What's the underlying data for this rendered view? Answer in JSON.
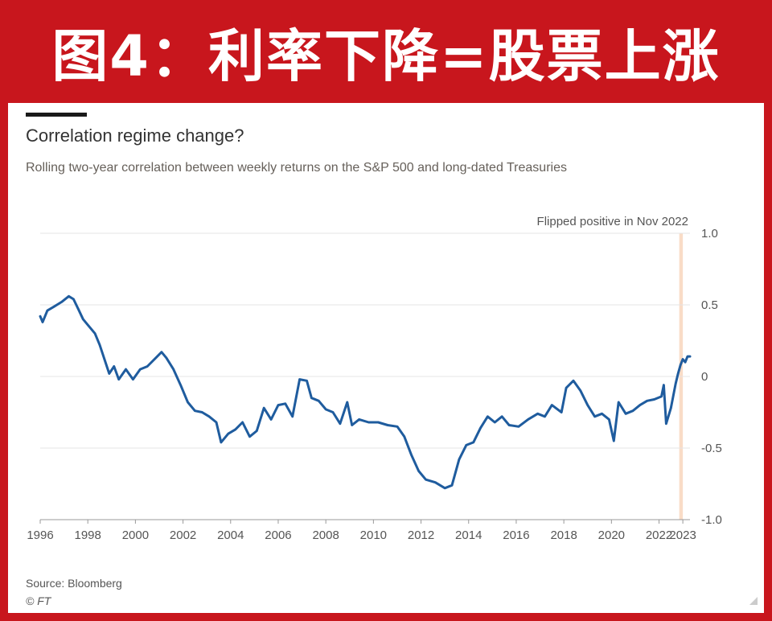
{
  "banner": {
    "title": "图4：利率下降=股票上涨"
  },
  "chart_data": {
    "type": "line",
    "title": "Correlation regime change?",
    "subtitle": "Rolling two-year correlation between weekly returns on the S&P 500 and long-dated Treasuries",
    "annotation": "Flipped positive in Nov 2022",
    "shaded_period": [
      2022.85,
      2023.0
    ],
    "x_ticks": [
      "1996",
      "1998",
      "2000",
      "2002",
      "2004",
      "2006",
      "2008",
      "2010",
      "2012",
      "2014",
      "2016",
      "2018",
      "2020",
      "2022",
      "2023"
    ],
    "y_ticks": [
      "1.0",
      "0.5",
      "0",
      "-0.5",
      "-1.0"
    ],
    "xlim": [
      1996,
      2023.3
    ],
    "ylim": [
      -1.0,
      1.0
    ],
    "y_axis_side": "right",
    "grid": true,
    "colors": {
      "line": "#1f5c9e",
      "shade": "#f9dcc7",
      "grid": "#e5e5e5"
    },
    "series": [
      {
        "points": [
          [
            1996.0,
            0.42
          ],
          [
            1996.1,
            0.38
          ],
          [
            1996.3,
            0.46
          ],
          [
            1996.6,
            0.49
          ],
          [
            1996.9,
            0.52
          ],
          [
            1997.2,
            0.56
          ],
          [
            1997.4,
            0.54
          ],
          [
            1997.6,
            0.47
          ],
          [
            1997.8,
            0.4
          ],
          [
            1998.0,
            0.36
          ],
          [
            1998.3,
            0.3
          ],
          [
            1998.5,
            0.22
          ],
          [
            1998.7,
            0.12
          ],
          [
            1998.9,
            0.02
          ],
          [
            1999.1,
            0.07
          ],
          [
            1999.3,
            -0.02
          ],
          [
            1999.6,
            0.05
          ],
          [
            1999.9,
            -0.02
          ],
          [
            2000.2,
            0.05
          ],
          [
            2000.5,
            0.07
          ],
          [
            2000.8,
            0.12
          ],
          [
            2001.1,
            0.17
          ],
          [
            2001.3,
            0.13
          ],
          [
            2001.6,
            0.05
          ],
          [
            2001.9,
            -0.06
          ],
          [
            2002.2,
            -0.18
          ],
          [
            2002.5,
            -0.24
          ],
          [
            2002.8,
            -0.25
          ],
          [
            2003.1,
            -0.28
          ],
          [
            2003.4,
            -0.32
          ],
          [
            2003.6,
            -0.46
          ],
          [
            2003.9,
            -0.4
          ],
          [
            2004.2,
            -0.37
          ],
          [
            2004.5,
            -0.32
          ],
          [
            2004.8,
            -0.42
          ],
          [
            2005.1,
            -0.38
          ],
          [
            2005.4,
            -0.22
          ],
          [
            2005.7,
            -0.3
          ],
          [
            2006.0,
            -0.2
          ],
          [
            2006.3,
            -0.19
          ],
          [
            2006.6,
            -0.28
          ],
          [
            2006.9,
            -0.02
          ],
          [
            2007.2,
            -0.03
          ],
          [
            2007.4,
            -0.15
          ],
          [
            2007.7,
            -0.17
          ],
          [
            2008.0,
            -0.23
          ],
          [
            2008.3,
            -0.25
          ],
          [
            2008.6,
            -0.33
          ],
          [
            2008.9,
            -0.18
          ],
          [
            2009.1,
            -0.34
          ],
          [
            2009.4,
            -0.3
          ],
          [
            2009.8,
            -0.32
          ],
          [
            2010.2,
            -0.32
          ],
          [
            2010.6,
            -0.34
          ],
          [
            2011.0,
            -0.35
          ],
          [
            2011.3,
            -0.42
          ],
          [
            2011.6,
            -0.55
          ],
          [
            2011.9,
            -0.66
          ],
          [
            2012.2,
            -0.72
          ],
          [
            2012.6,
            -0.74
          ],
          [
            2013.0,
            -0.78
          ],
          [
            2013.3,
            -0.76
          ],
          [
            2013.6,
            -0.58
          ],
          [
            2013.9,
            -0.48
          ],
          [
            2014.2,
            -0.46
          ],
          [
            2014.5,
            -0.36
          ],
          [
            2014.8,
            -0.28
          ],
          [
            2015.1,
            -0.32
          ],
          [
            2015.4,
            -0.28
          ],
          [
            2015.7,
            -0.34
          ],
          [
            2016.1,
            -0.35
          ],
          [
            2016.5,
            -0.3
          ],
          [
            2016.9,
            -0.26
          ],
          [
            2017.2,
            -0.28
          ],
          [
            2017.5,
            -0.2
          ],
          [
            2017.9,
            -0.25
          ],
          [
            2018.1,
            -0.08
          ],
          [
            2018.4,
            -0.03
          ],
          [
            2018.7,
            -0.1
          ],
          [
            2019.0,
            -0.2
          ],
          [
            2019.3,
            -0.28
          ],
          [
            2019.6,
            -0.26
          ],
          [
            2019.9,
            -0.3
          ],
          [
            2020.1,
            -0.45
          ],
          [
            2020.3,
            -0.18
          ],
          [
            2020.6,
            -0.26
          ],
          [
            2020.9,
            -0.24
          ],
          [
            2021.2,
            -0.2
          ],
          [
            2021.5,
            -0.17
          ],
          [
            2021.8,
            -0.16
          ],
          [
            2022.1,
            -0.14
          ],
          [
            2022.2,
            -0.06
          ],
          [
            2022.3,
            -0.33
          ],
          [
            2022.5,
            -0.22
          ],
          [
            2022.7,
            -0.05
          ],
          [
            2022.8,
            0.02
          ],
          [
            2022.9,
            0.08
          ],
          [
            2023.0,
            0.12
          ],
          [
            2023.1,
            0.1
          ],
          [
            2023.2,
            0.14
          ],
          [
            2023.3,
            0.14
          ]
        ]
      }
    ]
  },
  "footer": {
    "source": "Source: Bloomberg",
    "copyright": "© FT"
  }
}
